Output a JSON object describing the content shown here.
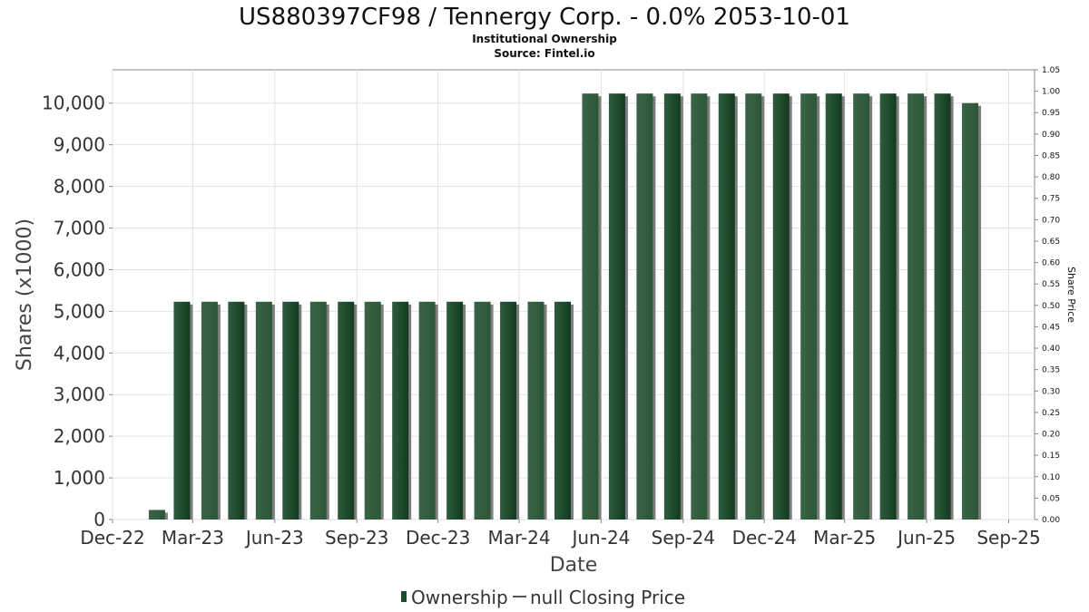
{
  "chart_data": {
    "type": "bar",
    "title": "US880397CF98 / Tennergy Corp. - 0.0% 2053-10-01",
    "subtitle": "Institutional Ownership",
    "source": "Source: Fintel.io",
    "xlabel": "Date",
    "ylabel": "Shares (x1000)",
    "y2label": "Share Price",
    "ylim": [
      0,
      10800
    ],
    "y2lim": [
      0,
      1.05
    ],
    "xlim": [
      "2022-12-01",
      "2025-09-30"
    ],
    "grid": true,
    "y_ticks": [
      "0",
      "1,000",
      "2,000",
      "3,000",
      "4,000",
      "5,000",
      "6,000",
      "7,000",
      "8,000",
      "9,000",
      "10,000"
    ],
    "y2_ticks": [
      "0.00",
      "0.05",
      "0.10",
      "0.15",
      "0.20",
      "0.25",
      "0.30",
      "0.35",
      "0.40",
      "0.45",
      "0.50",
      "0.55",
      "0.60",
      "0.65",
      "0.70",
      "0.75",
      "0.80",
      "0.85",
      "0.90",
      "0.95",
      "1.00",
      "1.05"
    ],
    "x_ticks": [
      {
        "label": "Dec-22",
        "date": "2022-12-01"
      },
      {
        "label": "Mar-23",
        "date": "2023-03-01"
      },
      {
        "label": "Jun-23",
        "date": "2023-06-01"
      },
      {
        "label": "Sep-23",
        "date": "2023-09-01"
      },
      {
        "label": "Dec-23",
        "date": "2023-12-01"
      },
      {
        "label": "Mar-24",
        "date": "2024-03-01"
      },
      {
        "label": "Jun-24",
        "date": "2024-06-01"
      },
      {
        "label": "Sep-24",
        "date": "2024-09-01"
      },
      {
        "label": "Dec-24",
        "date": "2024-12-01"
      },
      {
        "label": "Mar-25",
        "date": "2025-03-01"
      },
      {
        "label": "Jun-25",
        "date": "2025-06-01"
      },
      {
        "label": "Sep-25",
        "date": "2025-09-01"
      }
    ],
    "series": [
      {
        "name": "Ownership",
        "color": "#1a4d2e",
        "points": [
          {
            "date": "2023-02-01",
            "value": 230
          },
          {
            "date": "2023-03-01",
            "value": 5230
          },
          {
            "date": "2023-04-01",
            "value": 5230
          },
          {
            "date": "2023-05-01",
            "value": 5230
          },
          {
            "date": "2023-06-01",
            "value": 5230
          },
          {
            "date": "2023-07-01",
            "value": 5230
          },
          {
            "date": "2023-08-01",
            "value": 5230
          },
          {
            "date": "2023-09-01",
            "value": 5230
          },
          {
            "date": "2023-10-01",
            "value": 5230
          },
          {
            "date": "2023-11-01",
            "value": 5230
          },
          {
            "date": "2023-12-01",
            "value": 5230
          },
          {
            "date": "2024-01-01",
            "value": 5230
          },
          {
            "date": "2024-02-01",
            "value": 5230
          },
          {
            "date": "2024-03-01",
            "value": 5230
          },
          {
            "date": "2024-04-01",
            "value": 5230
          },
          {
            "date": "2024-05-01",
            "value": 5230
          },
          {
            "date": "2024-06-01",
            "value": 10230
          },
          {
            "date": "2024-07-01",
            "value": 10230
          },
          {
            "date": "2024-08-01",
            "value": 10230
          },
          {
            "date": "2024-09-01",
            "value": 10230
          },
          {
            "date": "2024-10-01",
            "value": 10230
          },
          {
            "date": "2024-11-01",
            "value": 10230
          },
          {
            "date": "2024-12-01",
            "value": 10230
          },
          {
            "date": "2025-01-01",
            "value": 10230
          },
          {
            "date": "2025-02-01",
            "value": 10230
          },
          {
            "date": "2025-03-01",
            "value": 10230
          },
          {
            "date": "2025-04-01",
            "value": 10230
          },
          {
            "date": "2025-05-01",
            "value": 10230
          },
          {
            "date": "2025-06-01",
            "value": 10230
          },
          {
            "date": "2025-07-01",
            "value": 10230
          },
          {
            "date": "2025-08-01",
            "value": 10000
          }
        ]
      }
    ],
    "legend": {
      "placement": "bottom",
      "items": [
        {
          "label": "Ownership",
          "symbol": "bar",
          "color": "#1a4d2e"
        },
        {
          "label": "null Closing Price",
          "symbol": "line",
          "color": "#555555"
        }
      ]
    }
  }
}
